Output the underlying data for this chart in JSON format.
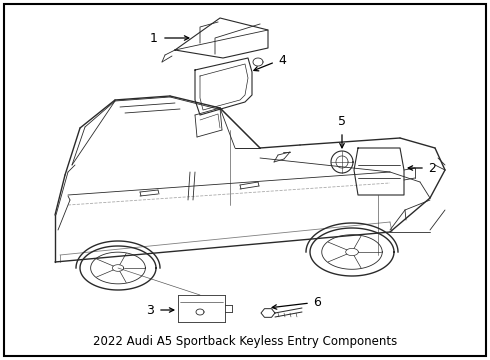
{
  "title": "2022 Audi A5 Sportback Keyless Entry Components",
  "background_color": "#ffffff",
  "border_color": "#000000",
  "text_color": "#000000",
  "title_fontsize": 8.5,
  "fig_width": 4.9,
  "fig_height": 3.6,
  "dpi": 100,
  "car_color": "#2a2a2a",
  "component_color": "#2a2a2a"
}
